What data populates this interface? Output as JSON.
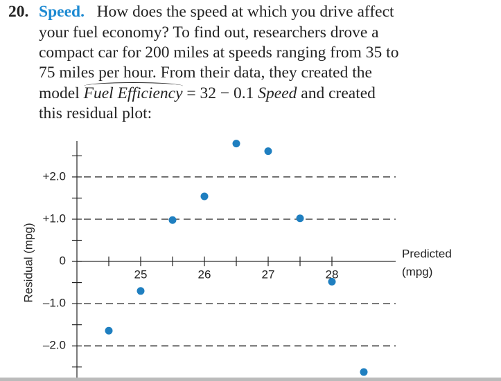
{
  "problem": {
    "number": "20.",
    "title": "Speed.",
    "lines": [
      "How does the speed at which you drive affect",
      "your fuel economy? To find out, researchers drove a",
      "compact car for 200 miles at speeds ranging from 35 to",
      "75 miles per hour. From their data, they created the"
    ],
    "model": {
      "before": "model",
      "response": "Fuel Efficiency",
      "equation": "= 32 − 0.1",
      "predictor": "Speed",
      "after": "and created"
    },
    "last_line": "this residual plot:"
  },
  "chart_data": {
    "type": "scatter",
    "x_label": [
      "Predicted",
      "(mpg)"
    ],
    "y_label": "Residual (mpg)",
    "x": [
      24.5,
      25,
      25.5,
      26,
      26.5,
      27,
      27.5,
      28,
      28.5
    ],
    "series": [
      {
        "color": "#1f7fc0",
        "values": [
          -1.64,
          -0.7,
          0.98,
          1.54,
          2.79,
          2.61,
          1.02,
          -0.48,
          -2.62
        ]
      }
    ],
    "xlim": [
      24,
      29
    ],
    "xticks": [
      25,
      26,
      27,
      28
    ],
    "xminorticks": [
      24.5,
      25.5,
      26.5,
      27.5
    ],
    "ylim": [
      -2.75,
      2.85
    ],
    "yticks": [
      {
        "value": 2,
        "label": "+2.0"
      },
      {
        "value": 1,
        "label": "+1.0"
      },
      0,
      {
        "value": -1,
        "label": "–1.0"
      },
      {
        "value": -2,
        "label": "–2.0"
      }
    ],
    "yminorticks": [
      2.5,
      1.5,
      0.5,
      -0.5,
      -1.5,
      -2.5
    ],
    "grid": true
  }
}
